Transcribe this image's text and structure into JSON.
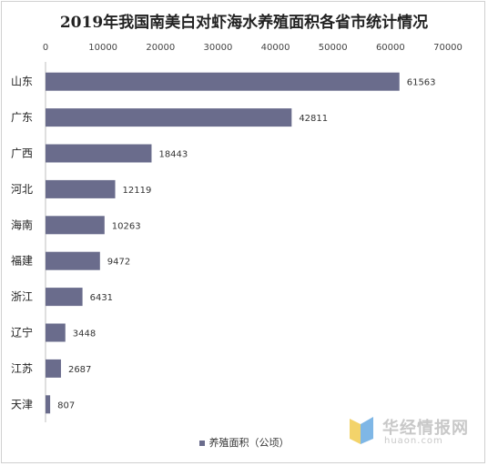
{
  "chart_data": {
    "type": "bar",
    "orientation": "horizontal",
    "title": "2019年我国南美白对虾海水养殖面积各省市统计情况",
    "categories": [
      "山东",
      "广东",
      "广西",
      "河北",
      "海南",
      "福建",
      "浙江",
      "辽宁",
      "江苏",
      "天津"
    ],
    "series": [
      {
        "name": "养殖面积（公顷）",
        "values": [
          61563,
          42811,
          18443,
          12119,
          10263,
          9472,
          6431,
          3448,
          2687,
          807
        ]
      }
    ],
    "xlim": [
      0,
      70000
    ],
    "xticks": [
      "0",
      "10000",
      "20000",
      "30000",
      "40000",
      "50000",
      "60000",
      "70000"
    ],
    "axis_position": "top",
    "grid": false,
    "legend_position": "bottom",
    "bar_color": "#6a6c8c"
  },
  "watermark": {
    "name": "华经情报网",
    "url": "huaon.com"
  }
}
